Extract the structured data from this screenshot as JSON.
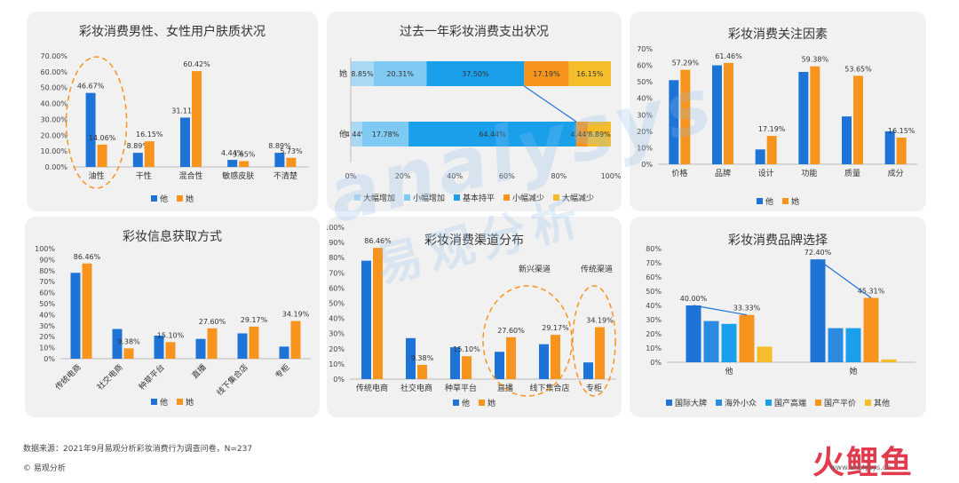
{
  "colors": {
    "male": "#1e73d6",
    "female": "#f7941d",
    "panel_bg": "#f1f1f2",
    "circle": "#f7941d"
  },
  "watermark": {
    "latin": "analysys",
    "cn": "易观分析"
  },
  "source": "数据来源：2021年9月易观分析彩妆消费行为调查问卷，N=237",
  "copyright": "© 易观分析",
  "logo": {
    "cn": "火鲤鱼",
    "url": "www.analysys.cn"
  },
  "chart_data": [
    {
      "id": "skin",
      "type": "bar",
      "title": "彩妆消费男性、女性用户肤质状况",
      "categories": [
        "油性",
        "干性",
        "混合性",
        "敏感皮肤",
        "不清楚"
      ],
      "series": [
        {
          "name": "他",
          "values": [
            46.67,
            8.89,
            31.11,
            4.44,
            8.89
          ],
          "labels": [
            "46.67%",
            "8.89%",
            "31.11%",
            "4.44%",
            "8.89%"
          ]
        },
        {
          "name": "她",
          "values": [
            14.06,
            16.15,
            60.42,
            3.65,
            5.73
          ],
          "labels": [
            "14.06%",
            "16.15%",
            "60.42%",
            "3.65%",
            "5.73%"
          ]
        }
      ],
      "ylim": [
        0,
        70
      ],
      "yticks": [
        "0.00%",
        "10.00%",
        "20.00%",
        "30.00%",
        "40.00%",
        "50.00%",
        "60.00%",
        "70.00%"
      ],
      "highlight": [
        "油性"
      ],
      "legend_placement": "bottom"
    },
    {
      "id": "spend",
      "type": "bar",
      "stacked": "horizontal",
      "title": "过去一年彩妆消费支出状况",
      "categories": [
        "她",
        "他"
      ],
      "series": [
        {
          "name": "大幅增加",
          "color": "#a9d8f5",
          "values": [
            8.85,
            4.44
          ],
          "labels": [
            "8.85%",
            "4.44%"
          ]
        },
        {
          "name": "小幅增加",
          "color": "#7fcaf3",
          "values": [
            20.31,
            17.78
          ],
          "labels": [
            "20.31%",
            "17.78%"
          ]
        },
        {
          "name": "基本持平",
          "color": "#1aa0eb",
          "values": [
            37.5,
            64.44
          ],
          "labels": [
            "37.50%",
            "64.44%"
          ]
        },
        {
          "name": "小幅减少",
          "color": "#f7941d",
          "values": [
            17.19,
            4.44
          ],
          "labels": [
            "17.19%",
            "4.44%"
          ]
        },
        {
          "name": "大幅减少",
          "color": "#f6bd2a",
          "values": [
            16.15,
            8.89
          ],
          "labels": [
            "16.15%",
            "8.89%"
          ]
        }
      ],
      "xlim": [
        0,
        100
      ],
      "xticks": [
        "0%",
        "20%",
        "40%",
        "60%",
        "80%",
        "100%"
      ],
      "legend_placement": "bottom"
    },
    {
      "id": "factors",
      "type": "bar",
      "title": "彩妆消费关注因素",
      "categories": [
        "价格",
        "品牌",
        "设计",
        "功能",
        "质量",
        "成分"
      ],
      "series": [
        {
          "name": "他",
          "values": [
            51,
            60,
            9,
            56,
            29,
            20
          ]
        },
        {
          "name": "她",
          "values": [
            57.29,
            61.46,
            17.19,
            59.38,
            53.65,
            16.15
          ],
          "labels": [
            "57.29%",
            "61.46%",
            "17.19%",
            "59.38%",
            "53.65%",
            "16.15%"
          ]
        }
      ],
      "ylim": [
        0,
        70
      ],
      "yticks": [
        "0%",
        "10%",
        "20%",
        "30%",
        "40%",
        "50%",
        "60%",
        "70%"
      ],
      "legend_placement": "bottom"
    },
    {
      "id": "info",
      "type": "bar",
      "title": "彩妆信息获取方式",
      "categories": [
        "传统电商",
        "社交电商",
        "种草平台",
        "直播",
        "线下集合店",
        "专柜"
      ],
      "series": [
        {
          "name": "他",
          "values": [
            78,
            27,
            21,
            18,
            23,
            11
          ]
        },
        {
          "name": "她",
          "values": [
            86.46,
            9.38,
            15.1,
            27.6,
            29.17,
            34.19
          ],
          "labels": [
            "86.46%",
            "9.38%",
            "15.10%",
            "27.60%",
            "29.17%",
            "34.19%"
          ]
        }
      ],
      "ylim": [
        0,
        100
      ],
      "yticks": [
        "0%",
        "10%",
        "20%",
        "30%",
        "40%",
        "50%",
        "60%",
        "70%",
        "80%",
        "90%",
        "100%"
      ],
      "rotate_labels": true,
      "legend_placement": "bottom"
    },
    {
      "id": "channel",
      "type": "bar",
      "title": "彩妆消费渠道分布",
      "categories": [
        "传统电商",
        "社交电商",
        "种草平台",
        "直播",
        "线下集合店",
        "专柜"
      ],
      "series": [
        {
          "name": "他",
          "values": [
            78,
            27,
            21,
            18,
            23,
            11
          ]
        },
        {
          "name": "她",
          "values": [
            86.46,
            9.38,
            15.1,
            27.6,
            29.17,
            34.19
          ],
          "labels": [
            "86.46%",
            "9.38%",
            "15.10%",
            "27.60%",
            "29.17%",
            "34.19%"
          ]
        }
      ],
      "ylim": [
        0,
        100
      ],
      "yticks": [
        "0%",
        "10%",
        "20%",
        "30%",
        "40%",
        "50%",
        "60%",
        "70%",
        "80%",
        "90%",
        "100%"
      ],
      "annotations": [
        {
          "text": "新兴渠道",
          "categories": [
            "直播",
            "线下集合店"
          ]
        },
        {
          "text": "传统渠道",
          "categories": [
            "专柜"
          ]
        }
      ],
      "legend_placement": "bottom"
    },
    {
      "id": "brand",
      "type": "bar",
      "title": "彩妆消费品牌选择",
      "categories": [
        "他",
        "她"
      ],
      "series": [
        {
          "name": "国际大牌",
          "color": "#1e73d6",
          "values": [
            40.0,
            72.4
          ],
          "labels": [
            "40.00%",
            "72.40%"
          ]
        },
        {
          "name": "海外小众",
          "color": "#2a8be0",
          "values": [
            29,
            24
          ]
        },
        {
          "name": "国产高端",
          "color": "#1aa0eb",
          "values": [
            27,
            24
          ]
        },
        {
          "name": "国产平价",
          "color": "#f7941d",
          "values": [
            33.33,
            45.31
          ],
          "labels": [
            "33.33%",
            "45.31%"
          ]
        },
        {
          "name": "其他",
          "color": "#f6bd2a",
          "values": [
            11,
            2
          ]
        }
      ],
      "ylim": [
        0,
        80
      ],
      "yticks": [
        "0%",
        "10%",
        "20%",
        "30%",
        "40%",
        "50%",
        "60%",
        "70%",
        "80%"
      ],
      "legend_placement": "bottom"
    }
  ]
}
